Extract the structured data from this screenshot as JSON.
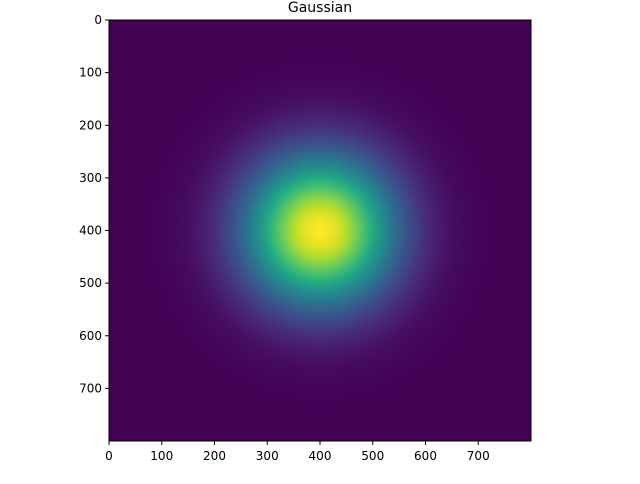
{
  "chart_data": {
    "type": "heatmap",
    "title": "Gaussian",
    "xlabel": "",
    "ylabel": "",
    "xlim": [
      0,
      800
    ],
    "ylim": [
      800,
      0
    ],
    "grid": false,
    "colormap": "viridis",
    "peak": {
      "x": 400,
      "y": 400
    },
    "sigma": 100,
    "x_ticks": [
      0,
      100,
      200,
      300,
      400,
      500,
      600,
      700
    ],
    "y_ticks": [
      0,
      100,
      200,
      300,
      400,
      500,
      600,
      700
    ],
    "x_tick_labels": [
      "0",
      "100",
      "200",
      "300",
      "400",
      "500",
      "600",
      "700"
    ],
    "y_tick_labels": [
      "0",
      "100",
      "200",
      "300",
      "400",
      "500",
      "600",
      "700"
    ]
  }
}
